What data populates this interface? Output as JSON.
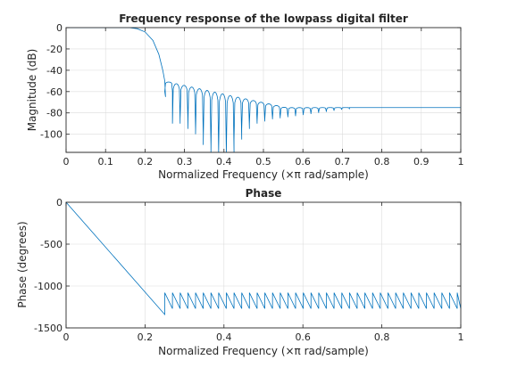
{
  "chart_data": [
    {
      "type": "line",
      "title": "Frequency response of the lowpass digital filter",
      "xlabel": "Normalized Frequency  (×π rad/sample)",
      "ylabel": "Magnitude (dB)",
      "xlim": [
        0,
        1
      ],
      "ylim": [
        -117,
        0
      ],
      "xticks": [
        0,
        0.1,
        0.2,
        0.3,
        0.4,
        0.5,
        0.6,
        0.7,
        0.8,
        0.9,
        1
      ],
      "xtick_labels": [
        "0",
        "0.1",
        "0.2",
        "0.3",
        "0.4",
        "0.5",
        "0.6",
        "0.7",
        "0.8",
        "0.9",
        "1"
      ],
      "yticks": [
        0,
        -20,
        -40,
        -60,
        -80,
        -100
      ],
      "ytick_labels": [
        "0",
        "-20",
        "-40",
        "-60",
        "-80",
        "-100"
      ],
      "grid": true,
      "series": [
        {
          "passband_edge": 0.16,
          "stopband_edge": 0.25,
          "points": [
            [
              0,
              0
            ],
            [
              0.16,
              0
            ],
            [
              0.18,
              -1
            ],
            [
              0.2,
              -4
            ],
            [
              0.22,
              -12
            ],
            [
              0.235,
              -25
            ],
            [
              0.245,
              -40
            ],
            [
              0.25,
              -50
            ],
            [
              0.252,
              -65
            ]
          ],
          "sidelobe_period": 0.0195,
          "sidelobe_peak_start": -51,
          "sidelobe_peak_end": -75,
          "null_depths": [
            -60,
            -90,
            -85,
            -95,
            -100,
            -110,
            -117,
            -117,
            -117,
            -105,
            -95,
            -90,
            -88,
            -86,
            -85,
            -84,
            -83,
            -82,
            -81,
            -80,
            -79,
            -78,
            -77,
            -76,
            -75,
            -75,
            -75,
            -75,
            -75,
            -75,
            -75,
            -75,
            -75,
            -75,
            -75,
            -75,
            -75,
            -75,
            -75
          ]
        }
      ]
    },
    {
      "type": "line",
      "title": "Phase",
      "xlabel": "Normalized Frequency  (×π rad/sample)",
      "ylabel": "Phase (degrees)",
      "xlim": [
        0,
        1
      ],
      "ylim": [
        -1500,
        0
      ],
      "xticks": [
        0,
        0.2,
        0.4,
        0.6,
        0.8,
        1
      ],
      "xtick_labels": [
        "0",
        "0.2",
        "0.4",
        "0.6",
        "0.8",
        "1"
      ],
      "yticks": [
        0,
        -500,
        -1000,
        -1500
      ],
      "ytick_labels": [
        "0",
        "-500",
        "-1000",
        "-1500"
      ],
      "grid": true,
      "series": [
        {
          "linear_points": [
            [
              0,
              0
            ],
            [
              0.25,
              -1340
            ]
          ],
          "sawtooth_start": 0.25,
          "sawtooth_period": 0.0195,
          "sawtooth_high": -1080,
          "sawtooth_low": -1270
        }
      ]
    }
  ]
}
